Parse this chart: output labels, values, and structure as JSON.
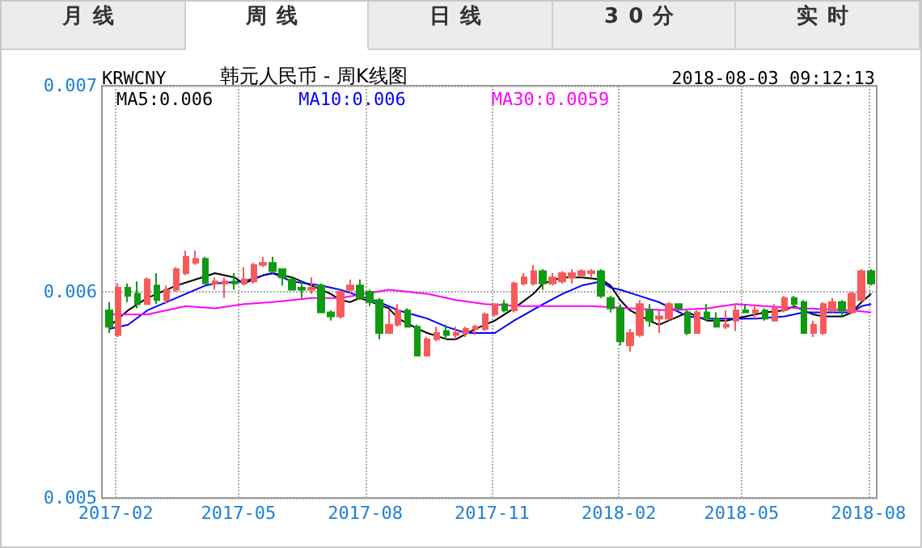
{
  "chart_data": {
    "type": "candlestick",
    "title": "韩元人民币 - 周K线图",
    "annotations": [
      "月线",
      "周线",
      "日线",
      "30分",
      "实时",
      "KRWCNY",
      "2018-08-03 09:12:13"
    ],
    "x": [
      "2017-01-27",
      "2017-02-03",
      "2017-02-10",
      "2017-02-17",
      "2017-02-24",
      "2017-03-03",
      "2017-03-10",
      "2017-03-17",
      "2017-03-24",
      "2017-03-31",
      "2017-04-07",
      "2017-04-14",
      "2017-04-21",
      "2017-04-28",
      "2017-05-05",
      "2017-05-12",
      "2017-05-19",
      "2017-05-26",
      "2017-06-02",
      "2017-06-09",
      "2017-06-16",
      "2017-06-23",
      "2017-06-30",
      "2017-07-07",
      "2017-07-14",
      "2017-07-21",
      "2017-07-28",
      "2017-08-04",
      "2017-08-11",
      "2017-08-18",
      "2017-08-25",
      "2017-09-01",
      "2017-09-08",
      "2017-09-15",
      "2017-09-22",
      "2017-09-29",
      "2017-10-06",
      "2017-10-13",
      "2017-10-20",
      "2017-10-27",
      "2017-11-03",
      "2017-11-10",
      "2017-11-17",
      "2017-11-24",
      "2017-12-01",
      "2017-12-08",
      "2017-12-15",
      "2017-12-22",
      "2017-12-29",
      "2018-01-05",
      "2018-01-12",
      "2018-01-19",
      "2018-01-26",
      "2018-02-02",
      "2018-02-09",
      "2018-02-16",
      "2018-02-23",
      "2018-03-02",
      "2018-03-09",
      "2018-03-16",
      "2018-03-23",
      "2018-03-30",
      "2018-04-06",
      "2018-04-13",
      "2018-04-20",
      "2018-04-27",
      "2018-05-04",
      "2018-05-11",
      "2018-05-18",
      "2018-05-25",
      "2018-06-01",
      "2018-06-08",
      "2018-06-15",
      "2018-06-22",
      "2018-06-29",
      "2018-07-06",
      "2018-07-13",
      "2018-07-20",
      "2018-07-27",
      "2018-08-03"
    ],
    "ohlc": [
      [
        0.00591,
        0.00595,
        0.0058,
        0.00583
      ],
      [
        0.00579,
        0.00604,
        0.00578,
        0.00602
      ],
      [
        0.00602,
        0.00604,
        0.00595,
        0.00598
      ],
      [
        0.00599,
        0.00605,
        0.00592,
        0.00594
      ],
      [
        0.00594,
        0.00607,
        0.00594,
        0.00606
      ],
      [
        0.00603,
        0.00609,
        0.00594,
        0.00596
      ],
      [
        0.00596,
        0.00603,
        0.00594,
        0.00601
      ],
      [
        0.00601,
        0.00612,
        0.006,
        0.00611
      ],
      [
        0.00609,
        0.0062,
        0.00608,
        0.00617
      ],
      [
        0.00614,
        0.0062,
        0.00613,
        0.00616
      ],
      [
        0.00616,
        0.00617,
        0.00604,
        0.00604
      ],
      [
        0.00604,
        0.00607,
        0.00601,
        0.00605
      ],
      [
        0.00604,
        0.00607,
        0.00597,
        0.00605
      ],
      [
        0.00605,
        0.00609,
        0.00601,
        0.00604
      ],
      [
        0.00604,
        0.00612,
        0.00603,
        0.00606
      ],
      [
        0.00605,
        0.00614,
        0.00604,
        0.00613
      ],
      [
        0.00613,
        0.00617,
        0.00612,
        0.00614
      ],
      [
        0.00614,
        0.00617,
        0.00609,
        0.0061
      ],
      [
        0.00611,
        0.00611,
        0.00603,
        0.00607
      ],
      [
        0.00606,
        0.00607,
        0.00601,
        0.00601
      ],
      [
        0.00602,
        0.00605,
        0.00597,
        0.00601
      ],
      [
        0.00601,
        0.00607,
        0.00599,
        0.00602
      ],
      [
        0.00603,
        0.00604,
        0.0059,
        0.0059
      ],
      [
        0.0059,
        0.00591,
        0.00586,
        0.00588
      ],
      [
        0.00588,
        0.00601,
        0.00587,
        0.006
      ],
      [
        0.00601,
        0.00606,
        0.00599,
        0.00603
      ],
      [
        0.00603,
        0.00606,
        0.00596,
        0.00597
      ],
      [
        0.006,
        0.00601,
        0.00593,
        0.00595
      ],
      [
        0.00596,
        0.00597,
        0.00577,
        0.0058
      ],
      [
        0.0058,
        0.00591,
        0.0058,
        0.00584
      ],
      [
        0.00584,
        0.00594,
        0.00583,
        0.00591
      ],
      [
        0.00591,
        0.00592,
        0.00583,
        0.00583
      ],
      [
        0.00583,
        0.00584,
        0.00569,
        0.00569
      ],
      [
        0.00569,
        0.00578,
        0.00569,
        0.00577
      ],
      [
        0.00577,
        0.00583,
        0.00576,
        0.0058
      ],
      [
        0.00581,
        0.00584,
        0.00577,
        0.00579
      ],
      [
        0.00579,
        0.00583,
        0.00577,
        0.0058
      ],
      [
        0.0058,
        0.00583,
        0.00578,
        0.00582
      ],
      [
        0.00582,
        0.00584,
        0.00579,
        0.00583
      ],
      [
        0.00582,
        0.0059,
        0.00581,
        0.00589
      ],
      [
        0.00589,
        0.00594,
        0.00588,
        0.00594
      ],
      [
        0.00594,
        0.00596,
        0.0059,
        0.00591
      ],
      [
        0.00591,
        0.00605,
        0.0059,
        0.00604
      ],
      [
        0.00604,
        0.00609,
        0.00603,
        0.00607
      ],
      [
        0.00604,
        0.00613,
        0.00603,
        0.0061
      ],
      [
        0.0061,
        0.00611,
        0.00601,
        0.00604
      ],
      [
        0.00604,
        0.00609,
        0.00603,
        0.00607
      ],
      [
        0.00605,
        0.0061,
        0.00604,
        0.00609
      ],
      [
        0.00607,
        0.00611,
        0.00604,
        0.00609
      ],
      [
        0.00608,
        0.00611,
        0.00607,
        0.0061
      ],
      [
        0.00609,
        0.00611,
        0.00607,
        0.0061
      ],
      [
        0.0061,
        0.00611,
        0.00597,
        0.00598
      ],
      [
        0.00597,
        0.00598,
        0.0059,
        0.00592
      ],
      [
        0.00592,
        0.00594,
        0.00574,
        0.00576
      ],
      [
        0.00574,
        0.00582,
        0.00571,
        0.0058
      ],
      [
        0.00579,
        0.00596,
        0.00578,
        0.00594
      ],
      [
        0.00591,
        0.00594,
        0.00583,
        0.00586
      ],
      [
        0.00587,
        0.00591,
        0.0058,
        0.00588
      ],
      [
        0.00587,
        0.00595,
        0.00586,
        0.00594
      ],
      [
        0.00594,
        0.00594,
        0.00591,
        0.00592
      ],
      [
        0.0059,
        0.00591,
        0.00579,
        0.0058
      ],
      [
        0.0058,
        0.00591,
        0.0058,
        0.0059
      ],
      [
        0.0059,
        0.00594,
        0.00586,
        0.00587
      ],
      [
        0.00587,
        0.0059,
        0.00583,
        0.00583
      ],
      [
        0.00583,
        0.00591,
        0.00582,
        0.00584
      ],
      [
        0.00586,
        0.00594,
        0.00581,
        0.00591
      ],
      [
        0.00591,
        0.00594,
        0.0059,
        0.0059
      ],
      [
        0.0059,
        0.00594,
        0.00587,
        0.00591
      ],
      [
        0.00591,
        0.00592,
        0.00586,
        0.00587
      ],
      [
        0.00586,
        0.00594,
        0.00586,
        0.00592
      ],
      [
        0.00591,
        0.00598,
        0.0059,
        0.00597
      ],
      [
        0.00597,
        0.00598,
        0.00592,
        0.00594
      ],
      [
        0.00595,
        0.00596,
        0.0058,
        0.0058
      ],
      [
        0.0058,
        0.00586,
        0.00578,
        0.00584
      ],
      [
        0.0058,
        0.00595,
        0.00579,
        0.00594
      ],
      [
        0.00591,
        0.00597,
        0.0059,
        0.00595
      ],
      [
        0.00595,
        0.00596,
        0.00588,
        0.00591
      ],
      [
        0.0059,
        0.006,
        0.0059,
        0.00599
      ],
      [
        0.00596,
        0.00611,
        0.00595,
        0.0061
      ],
      [
        0.0061,
        0.00611,
        0.00603,
        0.00604
      ]
    ],
    "series": [
      {
        "type": "line",
        "name": "MA5:0.006",
        "color": "#000000",
        "x": [
          "2017-01-27",
          "2017-02-10",
          "2017-02-24",
          "2017-03-17",
          "2017-03-31",
          "2017-04-14",
          "2017-04-28",
          "2017-05-05",
          "2017-05-19",
          "2017-05-26",
          "2017-06-09",
          "2017-06-23",
          "2017-07-07",
          "2017-07-14",
          "2017-07-21",
          "2017-07-28",
          "2017-08-18",
          "2017-08-25",
          "2017-09-08",
          "2017-09-15",
          "2017-09-29",
          "2017-10-06",
          "2017-10-20",
          "2017-11-03",
          "2017-11-17",
          "2017-12-01",
          "2017-12-08",
          "2017-12-22",
          "2018-01-05",
          "2018-01-19",
          "2018-01-26",
          "2018-02-02",
          "2018-02-09",
          "2018-02-23",
          "2018-03-02",
          "2018-03-16",
          "2018-03-23",
          "2018-03-30",
          "2018-04-06",
          "2018-04-20",
          "2018-05-04",
          "2018-05-18",
          "2018-06-01",
          "2018-06-08",
          "2018-06-22",
          "2018-06-29",
          "2018-07-13",
          "2018-07-20",
          "2018-07-27",
          "2018-08-03"
        ],
        "values": [
          0.00583,
          0.00591,
          0.00597,
          0.00603,
          0.00606,
          0.00609,
          0.00607,
          0.00604,
          0.00608,
          0.00609,
          0.00607,
          0.00603,
          0.00599,
          0.00596,
          0.00595,
          0.00597,
          0.00592,
          0.00587,
          0.00582,
          0.0058,
          0.00577,
          0.00577,
          0.00582,
          0.00586,
          0.00592,
          0.00599,
          0.00604,
          0.00607,
          0.00607,
          0.00606,
          0.00603,
          0.00596,
          0.00591,
          0.00586,
          0.00584,
          0.00588,
          0.0059,
          0.00588,
          0.00586,
          0.00586,
          0.00588,
          0.0059,
          0.00591,
          0.00593,
          0.00589,
          0.00588,
          0.00588,
          0.0059,
          0.00595,
          0.00599
        ]
      },
      {
        "type": "line",
        "name": "MA10:0.006",
        "color": "#0000ff",
        "x": [
          "2017-01-27",
          "2017-02-10",
          "2017-02-24",
          "2017-03-17",
          "2017-03-31",
          "2017-04-07",
          "2017-04-14",
          "2017-05-05",
          "2017-05-19",
          "2017-05-26",
          "2017-06-09",
          "2017-06-30",
          "2017-07-14",
          "2017-07-28",
          "2017-08-11",
          "2017-08-25",
          "2017-09-15",
          "2017-09-29",
          "2017-10-13",
          "2017-11-03",
          "2017-11-17",
          "2017-12-08",
          "2017-12-22",
          "2018-01-05",
          "2018-01-19",
          "2018-01-26",
          "2018-02-02",
          "2018-02-16",
          "2018-03-02",
          "2018-03-23",
          "2018-04-06",
          "2018-04-27",
          "2018-05-11",
          "2018-06-01",
          "2018-06-15",
          "2018-07-06",
          "2018-07-20",
          "2018-07-27",
          "2018-08-03"
        ],
        "values": [
          0.00582,
          0.00584,
          0.00591,
          0.00597,
          0.00601,
          0.00603,
          0.00604,
          0.00605,
          0.00608,
          0.00609,
          0.00605,
          0.00603,
          0.00601,
          0.00598,
          0.00595,
          0.00591,
          0.00587,
          0.00583,
          0.0058,
          0.0058,
          0.00586,
          0.00594,
          0.00599,
          0.00603,
          0.00605,
          0.00602,
          0.00601,
          0.00598,
          0.00595,
          0.00588,
          0.00587,
          0.00587,
          0.00587,
          0.00588,
          0.0059,
          0.0059,
          0.0059,
          0.00593,
          0.00594
        ]
      },
      {
        "type": "line",
        "name": "MA30:0.0059",
        "color": "#ff00ff",
        "x": [
          "2017-01-27",
          "2017-02-24",
          "2017-03-24",
          "2017-04-14",
          "2017-05-05",
          "2017-05-26",
          "2017-06-23",
          "2017-07-14",
          "2017-08-18",
          "2017-09-15",
          "2017-10-06",
          "2017-10-27",
          "2017-11-24",
          "2018-01-12",
          "2018-02-09",
          "2018-03-09",
          "2018-04-06",
          "2018-04-27",
          "2018-05-18",
          "2018-06-15",
          "2018-07-20",
          "2018-08-03"
        ],
        "values": [
          0.00589,
          0.00589,
          0.00593,
          0.00592,
          0.00594,
          0.00595,
          0.00597,
          0.00597,
          0.00601,
          0.00599,
          0.00596,
          0.00594,
          0.00593,
          0.00593,
          0.00592,
          0.00591,
          0.00592,
          0.00594,
          0.00593,
          0.00592,
          0.00591,
          0.0059
        ]
      }
    ],
    "xlim": [
      "2017-01-22",
      "2018-08-07"
    ],
    "xticks": [
      "2017-02",
      "2017-05",
      "2017-08",
      "2017-11",
      "2018-02",
      "2018-05",
      "2018-08"
    ],
    "ylim": [
      0.005,
      0.007
    ],
    "yticks": [
      0.005,
      0.006,
      0.007
    ],
    "grid": true,
    "legend": "top left",
    "marker": "none",
    "line_style": "solid"
  }
}
